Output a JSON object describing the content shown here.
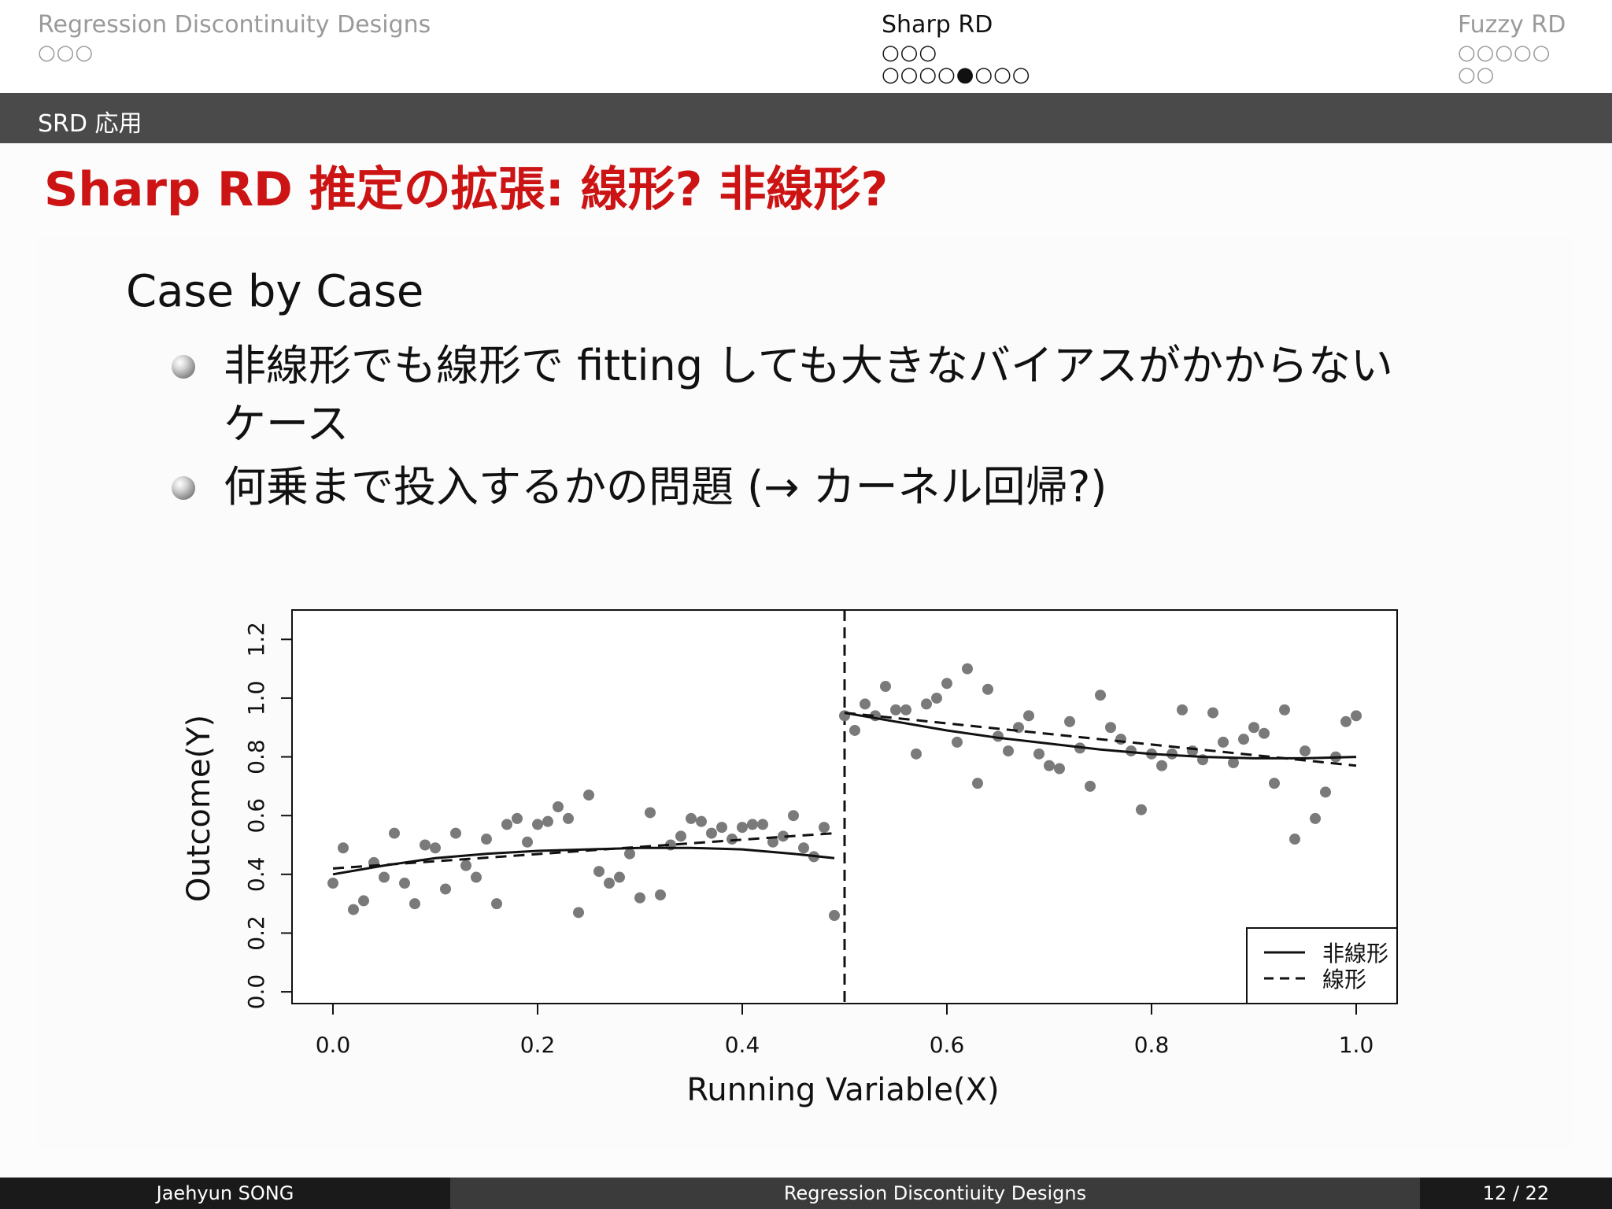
{
  "nav": {
    "left": {
      "label": "Regression Discontinuity Designs",
      "dots": "○○○"
    },
    "center": {
      "label": "Sharp RD",
      "dots1": "○○○",
      "dots2": "○○○○●○○○"
    },
    "right": {
      "label": "Fuzzy RD",
      "dots1": "○○○○○",
      "dots2": "○○"
    }
  },
  "subsection": "SRD 応用",
  "frame_title": "Sharp RD 推定の拡張: 線形? 非線形?",
  "heading": "Case by Case",
  "bullets": [
    {
      "line1": "非線形でも線形で fitting しても大きなバイアスがかからない",
      "line2": "ケース"
    },
    {
      "line1": "何乗まで投入するかの問題 (→ カーネル回帰?)"
    }
  ],
  "chart_data": {
    "type": "scatter",
    "xlabel": "Running Variable(X)",
    "ylabel": "Outcome(Y)",
    "xlim": [
      -0.04,
      1.04
    ],
    "ylim": [
      -0.04,
      1.3
    ],
    "xticks": [
      "0.0",
      "0.2",
      "0.4",
      "0.6",
      "0.8",
      "1.0"
    ],
    "yticks": [
      "0.0",
      "0.2",
      "0.4",
      "0.6",
      "0.8",
      "1.0",
      "1.2"
    ],
    "cutoff": 0.5,
    "points": [
      [
        0.0,
        0.37
      ],
      [
        0.01,
        0.49
      ],
      [
        0.02,
        0.28
      ],
      [
        0.03,
        0.31
      ],
      [
        0.04,
        0.44
      ],
      [
        0.05,
        0.39
      ],
      [
        0.06,
        0.54
      ],
      [
        0.07,
        0.37
      ],
      [
        0.08,
        0.3
      ],
      [
        0.09,
        0.5
      ],
      [
        0.1,
        0.49
      ],
      [
        0.11,
        0.35
      ],
      [
        0.12,
        0.54
      ],
      [
        0.13,
        0.43
      ],
      [
        0.14,
        0.39
      ],
      [
        0.15,
        0.52
      ],
      [
        0.16,
        0.3
      ],
      [
        0.17,
        0.57
      ],
      [
        0.18,
        0.59
      ],
      [
        0.19,
        0.51
      ],
      [
        0.2,
        0.57
      ],
      [
        0.21,
        0.58
      ],
      [
        0.22,
        0.63
      ],
      [
        0.23,
        0.59
      ],
      [
        0.24,
        0.27
      ],
      [
        0.25,
        0.67
      ],
      [
        0.26,
        0.41
      ],
      [
        0.27,
        0.37
      ],
      [
        0.28,
        0.39
      ],
      [
        0.29,
        0.47
      ],
      [
        0.3,
        0.32
      ],
      [
        0.31,
        0.61
      ],
      [
        0.32,
        0.33
      ],
      [
        0.33,
        0.5
      ],
      [
        0.34,
        0.53
      ],
      [
        0.35,
        0.59
      ],
      [
        0.36,
        0.58
      ],
      [
        0.37,
        0.54
      ],
      [
        0.38,
        0.56
      ],
      [
        0.39,
        0.52
      ],
      [
        0.4,
        0.56
      ],
      [
        0.41,
        0.57
      ],
      [
        0.42,
        0.57
      ],
      [
        0.43,
        0.51
      ],
      [
        0.44,
        0.53
      ],
      [
        0.45,
        0.6
      ],
      [
        0.46,
        0.49
      ],
      [
        0.47,
        0.46
      ],
      [
        0.48,
        0.56
      ],
      [
        0.49,
        0.26
      ],
      [
        0.5,
        0.94
      ],
      [
        0.51,
        0.89
      ],
      [
        0.52,
        0.98
      ],
      [
        0.53,
        0.94
      ],
      [
        0.54,
        1.04
      ],
      [
        0.55,
        0.96
      ],
      [
        0.56,
        0.96
      ],
      [
        0.57,
        0.81
      ],
      [
        0.58,
        0.98
      ],
      [
        0.59,
        1.0
      ],
      [
        0.6,
        1.05
      ],
      [
        0.61,
        0.85
      ],
      [
        0.62,
        1.1
      ],
      [
        0.63,
        0.71
      ],
      [
        0.64,
        1.03
      ],
      [
        0.65,
        0.87
      ],
      [
        0.66,
        0.82
      ],
      [
        0.67,
        0.9
      ],
      [
        0.68,
        0.94
      ],
      [
        0.69,
        0.81
      ],
      [
        0.7,
        0.77
      ],
      [
        0.71,
        0.76
      ],
      [
        0.72,
        0.92
      ],
      [
        0.73,
        0.83
      ],
      [
        0.74,
        0.7
      ],
      [
        0.75,
        1.01
      ],
      [
        0.76,
        0.9
      ],
      [
        0.77,
        0.86
      ],
      [
        0.78,
        0.82
      ],
      [
        0.79,
        0.62
      ],
      [
        0.8,
        0.81
      ],
      [
        0.81,
        0.77
      ],
      [
        0.82,
        0.81
      ],
      [
        0.83,
        0.96
      ],
      [
        0.84,
        0.82
      ],
      [
        0.85,
        0.79
      ],
      [
        0.86,
        0.95
      ],
      [
        0.87,
        0.85
      ],
      [
        0.88,
        0.78
      ],
      [
        0.89,
        0.86
      ],
      [
        0.9,
        0.9
      ],
      [
        0.91,
        0.88
      ],
      [
        0.92,
        0.71
      ],
      [
        0.93,
        0.96
      ],
      [
        0.94,
        0.52
      ],
      [
        0.95,
        0.82
      ],
      [
        0.96,
        0.59
      ],
      [
        0.97,
        0.68
      ],
      [
        0.98,
        0.8
      ],
      [
        0.99,
        0.92
      ],
      [
        1.0,
        0.94
      ]
    ],
    "series": [
      {
        "name": "非線形",
        "style": "solid",
        "segments": [
          {
            "x": [
              0.0,
              0.05,
              0.1,
              0.15,
              0.2,
              0.25,
              0.3,
              0.35,
              0.4,
              0.45,
              0.49
            ],
            "y": [
              0.4,
              0.43,
              0.455,
              0.47,
              0.48,
              0.485,
              0.49,
              0.49,
              0.485,
              0.47,
              0.455
            ]
          },
          {
            "x": [
              0.5,
              0.55,
              0.6,
              0.65,
              0.7,
              0.75,
              0.8,
              0.85,
              0.9,
              0.95,
              1.0
            ],
            "y": [
              0.95,
              0.92,
              0.89,
              0.865,
              0.845,
              0.825,
              0.81,
              0.8,
              0.795,
              0.795,
              0.8
            ]
          }
        ]
      },
      {
        "name": "線形",
        "style": "dashed",
        "segments": [
          {
            "x": [
              0.0,
              0.49
            ],
            "y": [
              0.42,
              0.54
            ]
          },
          {
            "x": [
              0.5,
              1.0
            ],
            "y": [
              0.95,
              0.77
            ]
          }
        ]
      }
    ],
    "legend_position": "bottom-right"
  },
  "footer": {
    "author": "Jaehyun SONG",
    "title": "Regression Discontiuity Designs",
    "page": "12 / 22"
  }
}
